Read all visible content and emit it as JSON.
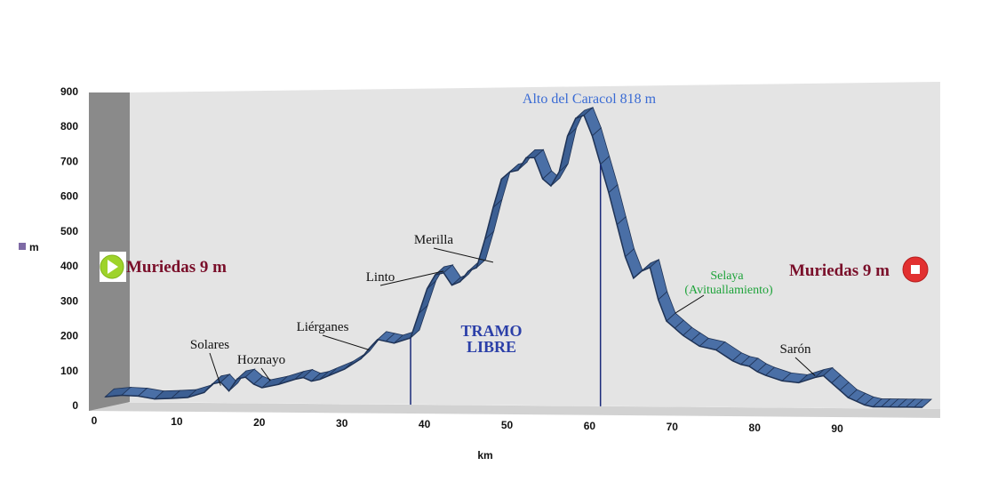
{
  "chart_data": {
    "type": "area",
    "xlabel": "km",
    "ylabel": "m",
    "xlim": [
      0,
      100
    ],
    "ylim": [
      0,
      900
    ],
    "x_ticks": [
      0,
      10,
      20,
      30,
      40,
      50,
      60,
      70,
      80,
      90
    ],
    "y_ticks": [
      0,
      100,
      200,
      300,
      400,
      500,
      600,
      700,
      800,
      900
    ],
    "grid": false,
    "legend": "left",
    "colors": {
      "profile": "#3c5f93",
      "profile_dark": "#1f3356",
      "plot_bg": "#e4e4e4",
      "wall": "#8a8a8a",
      "marker_line": "#1a2a7a"
    },
    "series": [
      {
        "name": "m",
        "x": [
          1,
          3,
          5,
          7,
          9,
          11,
          13,
          14,
          15,
          16,
          17,
          18,
          19,
          20,
          22,
          24,
          25,
          26,
          27,
          28,
          30,
          32,
          33,
          34,
          35,
          36,
          38,
          39,
          40,
          41,
          42,
          43,
          44,
          45,
          46,
          47,
          48,
          49,
          50,
          51,
          52,
          53,
          54,
          55,
          56,
          57,
          58,
          59,
          60,
          61,
          62,
          63,
          64,
          65,
          66,
          67,
          68,
          69,
          70,
          71,
          72,
          73,
          75,
          77,
          78,
          79,
          80,
          81,
          83,
          85,
          87,
          88,
          89,
          90,
          91,
          92,
          93,
          94,
          95,
          96,
          97,
          98,
          99,
          100
        ],
        "y": [
          15,
          20,
          18,
          10,
          12,
          15,
          30,
          55,
          60,
          35,
          70,
          75,
          55,
          45,
          55,
          70,
          75,
          65,
          70,
          80,
          100,
          130,
          160,
          185,
          180,
          175,
          190,
          260,
          330,
          370,
          375,
          340,
          350,
          380,
          390,
          470,
          560,
          640,
          660,
          665,
          700,
          700,
          640,
          620,
          660,
          760,
          810,
          818,
          760,
          680,
          600,
          510,
          420,
          360,
          380,
          390,
          300,
          240,
          220,
          200,
          185,
          170,
          160,
          130,
          120,
          115,
          100,
          90,
          75,
          70,
          85,
          90,
          70,
          50,
          30,
          20,
          10,
          5,
          5,
          5,
          5,
          5,
          5,
          5
        ]
      }
    ],
    "annotations": {
      "start": "Muriedas 9 m",
      "finish": "Muriedas 9 m",
      "summit": "Alto del Caracol 818 m",
      "tramo_line1": "TRAMO",
      "tramo_line2": "LIBRE",
      "places": [
        {
          "key": "solares",
          "text": "Solares",
          "km": 15,
          "alt": 40
        },
        {
          "key": "hoznayo",
          "text": "Hoznayo",
          "km": 21,
          "alt": 55
        },
        {
          "key": "lierganes",
          "text": "Liérganes",
          "km": 33,
          "alt": 145
        },
        {
          "key": "linto",
          "text": "Linto",
          "km": 42,
          "alt": 370
        },
        {
          "key": "merilla",
          "text": "Merilla",
          "km": 48,
          "alt": 395
        },
        {
          "key": "sarón",
          "text": "Sarón",
          "km": 87,
          "alt": 80
        }
      ],
      "selaya_line1": "Selaya",
      "selaya_line2": "(Avituallamiento)",
      "vertical_markers_km": [
        38,
        61
      ]
    }
  }
}
